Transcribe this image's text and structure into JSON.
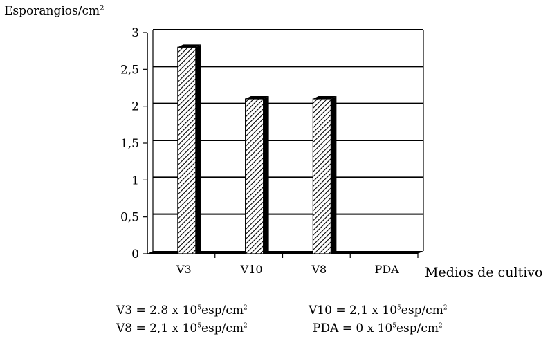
{
  "chart_data": {
    "type": "bar",
    "title": "",
    "ylabel_main": "Esporangios/cm",
    "ylabel_exp": "2",
    "xlabel": "Medios de cultivo",
    "categories": [
      "V3",
      "V10",
      "V8",
      "PDA"
    ],
    "values": [
      2.8,
      2.1,
      2.1,
      0
    ],
    "ylim": [
      0,
      3
    ],
    "yticks": [
      "0",
      "0,5",
      "1",
      "1,5",
      "2",
      "2,5",
      "3"
    ],
    "ytick_values": [
      0,
      0.5,
      1,
      1.5,
      2,
      2.5,
      3
    ],
    "grid": true,
    "legend": "none",
    "style": "3d-hatched",
    "colors": {
      "bar": "#000000",
      "hatch_bg": "#ffffff",
      "grid": "#000000"
    }
  },
  "notes": [
    {
      "name": "V3",
      "eq": " = 2.8  x 10",
      "exp": "5",
      "unit": "esp/cm",
      "unit_exp": "2"
    },
    {
      "name": "V10",
      "eq": " = 2,1 x 10",
      "exp": "5",
      "unit": "esp/cm",
      "unit_exp": "2"
    },
    {
      "name": "V8",
      "eq": " = 2,1 x 10",
      "exp": "5",
      "unit": "esp/cm",
      "unit_exp": "2"
    },
    {
      "name": "PDA",
      "eq": " = 0 x 10",
      "exp": "5",
      "unit": "esp/cm",
      "unit_exp": "2"
    }
  ]
}
